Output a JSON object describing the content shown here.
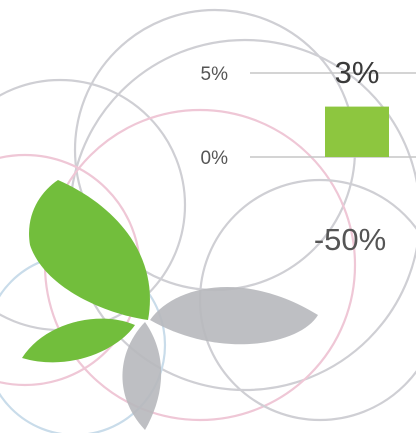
{
  "chart_data": {
    "type": "bar",
    "categories": [
      ""
    ],
    "values": [
      3
    ],
    "y_ticks": [
      "5%",
      "0%"
    ],
    "value_labels": [
      "3%"
    ],
    "annotations": [
      "-50%"
    ],
    "ylim": [
      0,
      5
    ],
    "grid": true,
    "bar_color": "#8dc63f"
  },
  "decor": {
    "leaf_green": "#72be3c",
    "leaf_gray": "#b7b8bc",
    "ring_gray": "#cfcfd4",
    "ring_pink": "#efc7d6",
    "ring_blue": "#c9dcea",
    "axis_color": "#c6c6c6",
    "text_color": "#555555"
  }
}
